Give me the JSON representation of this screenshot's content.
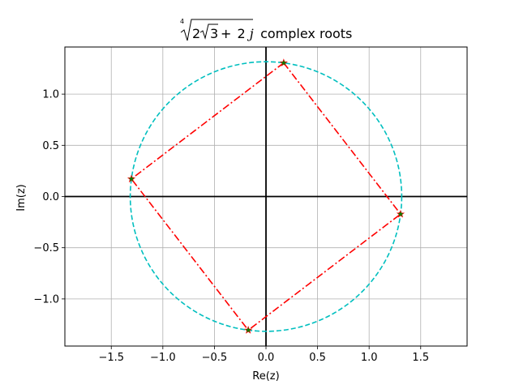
{
  "chart_data": {
    "type": "scatter",
    "title": {
      "root_index": "4",
      "radicand_math": "2√3 + 2j",
      "radicand_parts": {
        "coef": "2",
        "sqrt_arg": "3",
        "plus": "+",
        "imag_coef": "2",
        "imag_unit": "j"
      },
      "suffix": " complex roots"
    },
    "xlabel": "Re(z)",
    "ylabel": "Im(z)",
    "xlim": [
      -1.95,
      1.95
    ],
    "ylim": [
      -1.46,
      1.46
    ],
    "xticks": [
      -1.5,
      -1.0,
      -0.5,
      0.0,
      0.5,
      1.0,
      1.5
    ],
    "xtick_labels": [
      "−1.5",
      "−1.0",
      "−0.5",
      "0.0",
      "0.5",
      "1.0",
      "1.5"
    ],
    "yticks": [
      -1.0,
      -0.5,
      0.0,
      0.5,
      1.0
    ],
    "ytick_labels": [
      "−1.0",
      "−0.5",
      "0.0",
      "0.5",
      "1.0"
    ],
    "grid": true,
    "circle": {
      "radius": 1.3161,
      "color": "#00bfbf",
      "style": "dashed"
    },
    "axes_lines_color": "#000000",
    "polygon": {
      "color": "#ff0000",
      "style": "dash-dot"
    },
    "roots": {
      "marker_color": "#008000",
      "marker_edge_color": "#ff0000",
      "points": [
        {
          "x": 0.1718,
          "y": 1.3049
        },
        {
          "x": -1.3049,
          "y": 0.1718
        },
        {
          "x": -0.1718,
          "y": -1.3049
        },
        {
          "x": 1.3049,
          "y": -0.1718
        }
      ]
    }
  }
}
